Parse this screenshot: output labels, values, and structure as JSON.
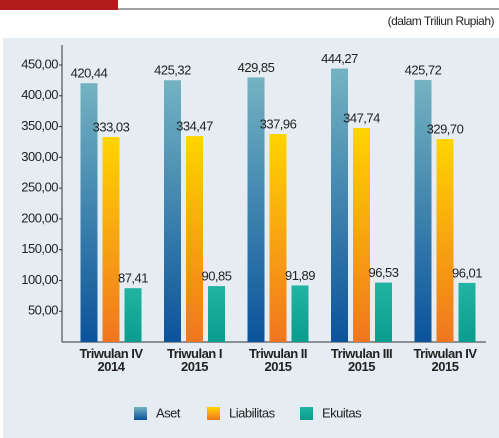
{
  "chart_data": {
    "type": "bar",
    "subtitle": "(dalam Triliun Rupiah)",
    "categories": [
      "Triwulan IV\n2014",
      "Triwulan I\n2015",
      "Triwulan II\n2015",
      "Triwulan III\n2015",
      "Triwulan IV\n2015"
    ],
    "series": [
      {
        "name": "Aset",
        "colors": [
          "#74b3c2",
          "#0a539a"
        ],
        "values": [
          420.44,
          425.32,
          429.85,
          444.27,
          425.72
        ],
        "value_labels": [
          "420,44",
          "425,32",
          "429,85",
          "444,27",
          "425,72"
        ]
      },
      {
        "name": "Liabilitas",
        "colors": [
          "#ffd400",
          "#f0761f"
        ],
        "values": [
          333.03,
          334.47,
          337.96,
          347.74,
          329.7
        ],
        "value_labels": [
          "333,03",
          "334,47",
          "337,96",
          "347,74",
          "329,70"
        ]
      },
      {
        "name": "Ekuitas",
        "colors": [
          "#22b3a3",
          "#0a9c8c"
        ],
        "values": [
          87.41,
          90.85,
          91.89,
          96.53,
          96.01
        ],
        "value_labels": [
          "87,41",
          "90,85",
          "91,89",
          "96,53",
          "96,01"
        ]
      }
    ],
    "ylim": [
      0,
      450
    ],
    "yticks": [
      {
        "value": 50,
        "label": "50,00"
      },
      {
        "value": 100,
        "label": "100,00"
      },
      {
        "value": 150,
        "label": "150,00"
      },
      {
        "value": 200,
        "label": "200,00"
      },
      {
        "value": 250,
        "label": "250,00"
      },
      {
        "value": 300,
        "label": "300,00"
      },
      {
        "value": 350,
        "label": "350,00"
      },
      {
        "value": 400,
        "label": "400,00"
      },
      {
        "value": 450,
        "label": "450,00"
      }
    ],
    "grid": false,
    "legend": "bottom"
  }
}
